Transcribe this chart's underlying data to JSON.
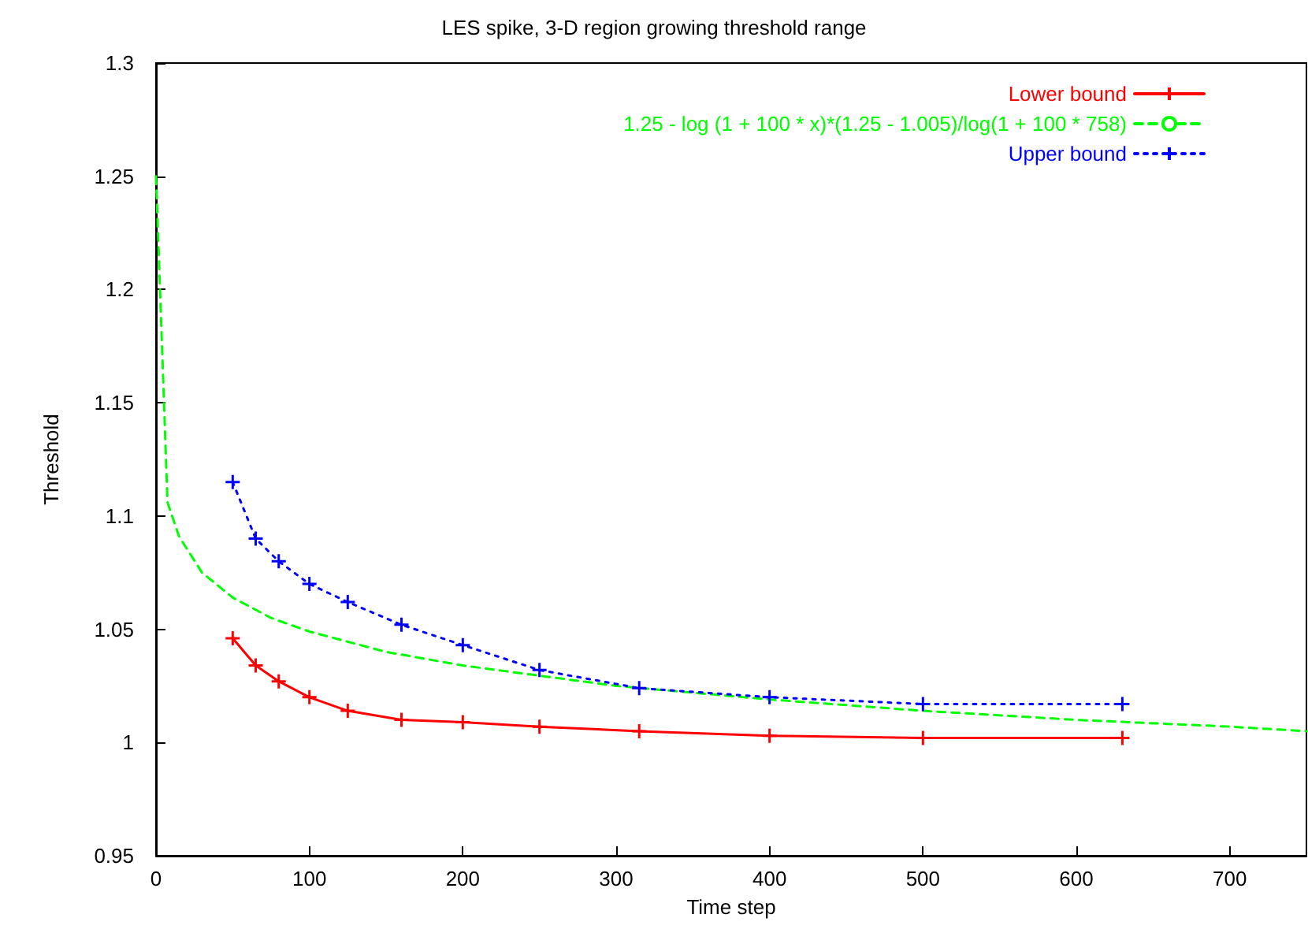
{
  "chart_data": {
    "type": "line",
    "title": "LES spike, 3-D region growing threshold range",
    "xlabel": "Time step",
    "ylabel": "Threshold",
    "xlim": [
      0,
      750
    ],
    "xticks": [
      0,
      100,
      200,
      300,
      400,
      500,
      600,
      700
    ],
    "ylim": [
      0.95,
      1.3
    ],
    "yticks": [
      0.95,
      1,
      1.05,
      1.1,
      1.15,
      1.2,
      1.25,
      1.3
    ],
    "grid": false,
    "legend": "top right",
    "series": [
      {
        "name": "Lower bound",
        "color": "#ff0000",
        "marker": "cross",
        "line_style": "solid",
        "x": [
          50,
          65,
          80,
          100,
          125,
          160,
          200,
          250,
          315,
          400,
          500,
          630
        ],
        "values": [
          1.046,
          1.034,
          1.027,
          1.02,
          1.014,
          1.01,
          1.009,
          1.007,
          1.005,
          1.003,
          1.002,
          1.002
        ]
      },
      {
        "name": "1.25 - log (1 + 100 * x)*(1.25 - 1.005)/log(1 + 100 * 758)",
        "color": "#00ff00",
        "marker": "none",
        "line_style": "dashed",
        "x": [
          0,
          7.5,
          15,
          30,
          50,
          75,
          100,
          150,
          200,
          300,
          400,
          500,
          600,
          700,
          750
        ],
        "values": [
          1.25,
          1.106,
          1.091,
          1.075,
          1.064,
          1.055,
          1.049,
          1.04,
          1.034,
          1.025,
          1.019,
          1.014,
          1.01,
          1.007,
          1.005
        ]
      },
      {
        "name": "Upper bound",
        "color": "#0000ff",
        "marker": "cross",
        "line_style": "dotted",
        "x": [
          50,
          65,
          80,
          100,
          125,
          160,
          200,
          250,
          315,
          400,
          500,
          630
        ],
        "values": [
          1.115,
          1.09,
          1.08,
          1.07,
          1.062,
          1.052,
          1.043,
          1.032,
          1.024,
          1.02,
          1.017,
          1.017
        ]
      }
    ]
  }
}
